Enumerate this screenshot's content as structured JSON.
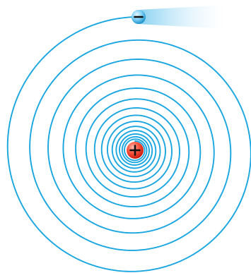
{
  "colors": {
    "spiral": "#1aa6e0",
    "trail": "#7fcdf0",
    "electron_light": "#bfe9fb",
    "electron_dark": "#1890c8",
    "nucleus_light": "#ff8a78",
    "nucleus_dark": "#d31c10",
    "symbol_stroke": "#111111"
  },
  "electron": {
    "symbol": "minus-sign",
    "charge": "negative"
  },
  "nucleus": {
    "symbol": "plus-sign",
    "charge": "positive"
  }
}
